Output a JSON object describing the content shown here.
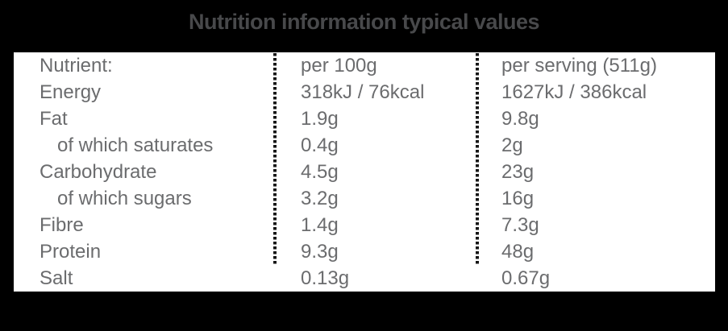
{
  "title": "Nutrition information typical values",
  "table": {
    "columns": [
      "Nutrient:",
      "per 100g",
      "per serving (511g)"
    ],
    "rows": [
      {
        "nutrient": "Energy",
        "per_100g": "318kJ / 76kcal",
        "per_serving": "1627kJ / 386kcal",
        "indent": false
      },
      {
        "nutrient": "Fat",
        "per_100g": "1.9g",
        "per_serving": "9.8g",
        "indent": false
      },
      {
        "nutrient": "of which saturates",
        "per_100g": "0.4g",
        "per_serving": "2g",
        "indent": true
      },
      {
        "nutrient": "Carbohydrate",
        "per_100g": "4.5g",
        "per_serving": "23g",
        "indent": false
      },
      {
        "nutrient": "of which sugars",
        "per_100g": "3.2g",
        "per_serving": "16g",
        "indent": true
      },
      {
        "nutrient": "Fibre",
        "per_100g": "1.4g",
        "per_serving": "7.3g",
        "indent": false
      },
      {
        "nutrient": "Protein",
        "per_100g": "9.3g",
        "per_serving": "48g",
        "indent": false
      },
      {
        "nutrient": "Salt",
        "per_100g": "0.13g",
        "per_serving": "0.67g",
        "indent": false
      }
    ]
  },
  "colors": {
    "background": "#000000",
    "table_background": "#ffffff",
    "title_text": "#48494b",
    "body_text": "#6b6c6e",
    "separator": "#161616"
  }
}
